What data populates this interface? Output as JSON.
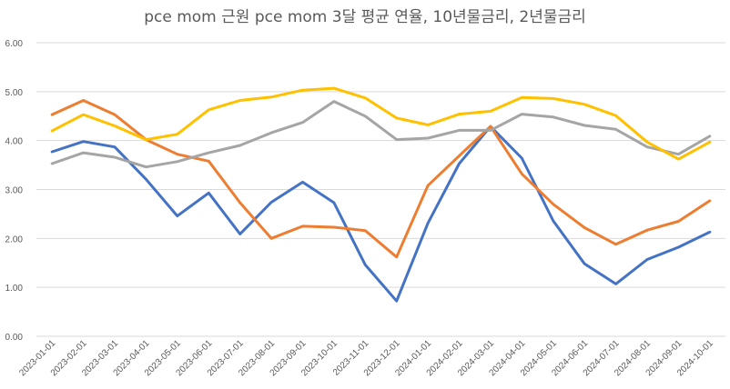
{
  "chart_data": {
    "type": "line",
    "title": "pce mom 근원 pce mom 3달 평균 연율, 10년물금리, 2년물금리",
    "xlabel": "",
    "ylabel": "",
    "ylim": [
      0,
      6
    ],
    "yticks": [
      "0.00",
      "1.00",
      "2.00",
      "3.00",
      "4.00",
      "5.00",
      "6.00"
    ],
    "grid": true,
    "legend": "none",
    "categories": [
      "2023-01-01",
      "2023-02-01",
      "2023-03-01",
      "2023-04-01",
      "2023-05-01",
      "2023-06-01",
      "2023-07-01",
      "2023-08-01",
      "2023-09-01",
      "2023-10-01",
      "2023-11-01",
      "2023-12-01",
      "2024-01-01",
      "2024-02-01",
      "2024-03-01",
      "2024-04-01",
      "2024-05-01",
      "2024-06-01",
      "2024-07-01",
      "2024-08-01",
      "2024-09-01",
      "2024-10-01"
    ],
    "series": [
      {
        "color": "#4472c4",
        "values": [
          3.77,
          3.98,
          3.87,
          3.21,
          2.46,
          2.93,
          2.09,
          2.74,
          3.15,
          2.73,
          1.46,
          0.72,
          2.31,
          3.53,
          4.29,
          3.64,
          2.36,
          1.48,
          1.07,
          1.57,
          1.82,
          2.13
        ]
      },
      {
        "color": "#ed7d31",
        "values": [
          4.53,
          4.82,
          4.53,
          4.02,
          3.72,
          3.58,
          2.73,
          2.0,
          2.25,
          2.23,
          2.16,
          1.62,
          3.08,
          3.69,
          4.29,
          3.32,
          2.7,
          2.22,
          1.88,
          2.17,
          2.35,
          2.77
        ]
      },
      {
        "color": "#a5a5a5",
        "values": [
          3.53,
          3.75,
          3.66,
          3.46,
          3.57,
          3.75,
          3.9,
          4.16,
          4.37,
          4.8,
          4.5,
          4.02,
          4.05,
          4.21,
          4.21,
          4.54,
          4.48,
          4.31,
          4.23,
          3.87,
          3.72,
          4.09
        ]
      },
      {
        "color": "#ffc000",
        "values": [
          4.2,
          4.53,
          4.3,
          4.02,
          4.13,
          4.63,
          4.82,
          4.89,
          5.03,
          5.07,
          4.87,
          4.46,
          4.32,
          4.54,
          4.6,
          4.88,
          4.86,
          4.74,
          4.51,
          3.97,
          3.62,
          3.97
        ]
      }
    ]
  }
}
